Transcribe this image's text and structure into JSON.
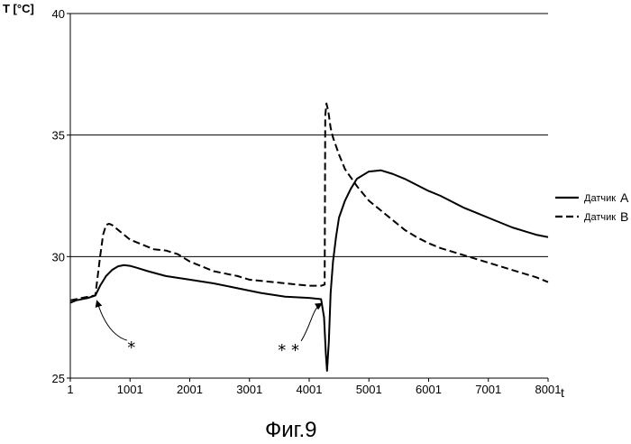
{
  "chart_data": {
    "type": "line",
    "title": "",
    "caption": "Фиг.9",
    "ylabel": "T [°C]",
    "xlabel": "t",
    "ylim": [
      25,
      40
    ],
    "xlim": [
      1,
      8001
    ],
    "y_ticks": [
      25,
      30,
      35,
      40
    ],
    "x_ticks": [
      1,
      1001,
      2001,
      3001,
      4001,
      5001,
      6001,
      7001,
      8001
    ],
    "x_tick_labels": [
      "1",
      "1001",
      "2001",
      "3001",
      "4001",
      "5001",
      "6001",
      "7001",
      "8001"
    ],
    "grid": "horizontal",
    "legend_position": "right",
    "series": [
      {
        "name": "Датчик",
        "letter": "A",
        "style": "solid",
        "x": [
          1,
          100,
          300,
          420,
          500,
          600,
          700,
          800,
          900,
          1000,
          1100,
          1300,
          1600,
          2000,
          2400,
          2800,
          3200,
          3600,
          4000,
          4200,
          4250,
          4280,
          4300,
          4330,
          4360,
          4400,
          4450,
          4500,
          4600,
          4700,
          4800,
          5000,
          5200,
          5400,
          5600,
          5800,
          6000,
          6200,
          6400,
          6600,
          6800,
          7000,
          7200,
          7400,
          7600,
          7800,
          8001
        ],
        "values": [
          28.1,
          28.2,
          28.3,
          28.4,
          28.8,
          29.2,
          29.45,
          29.6,
          29.65,
          29.62,
          29.55,
          29.4,
          29.2,
          29.05,
          28.9,
          28.7,
          28.5,
          28.35,
          28.3,
          28.25,
          27.5,
          26.0,
          25.3,
          26.5,
          28.5,
          29.8,
          30.8,
          31.6,
          32.3,
          32.8,
          33.2,
          33.5,
          33.55,
          33.4,
          33.2,
          32.95,
          32.7,
          32.5,
          32.25,
          32.0,
          31.8,
          31.6,
          31.4,
          31.2,
          31.05,
          30.9,
          30.8
        ]
      },
      {
        "name": "Датчик",
        "letter": "B",
        "style": "dashed",
        "x": [
          1,
          100,
          300,
          420,
          450,
          500,
          550,
          600,
          650,
          700,
          800,
          900,
          1000,
          1200,
          1400,
          1600,
          1800,
          2000,
          2200,
          2400,
          2600,
          2800,
          3000,
          3200,
          3400,
          3600,
          3800,
          4000,
          4200,
          4260,
          4270,
          4290,
          4320,
          4360,
          4400,
          4500,
          4600,
          4800,
          5000,
          5200,
          5400,
          5600,
          5800,
          6000,
          6200,
          6400,
          6600,
          6800,
          7000,
          7200,
          7400,
          7600,
          7800,
          8001
        ],
        "values": [
          28.2,
          28.25,
          28.35,
          28.4,
          29.0,
          30.0,
          30.9,
          31.3,
          31.35,
          31.3,
          31.1,
          30.9,
          30.7,
          30.5,
          30.3,
          30.25,
          30.1,
          29.8,
          29.6,
          29.4,
          29.3,
          29.2,
          29.05,
          29.0,
          28.95,
          28.9,
          28.85,
          28.8,
          28.8,
          28.85,
          35.8,
          36.3,
          36.0,
          35.3,
          34.9,
          34.2,
          33.6,
          32.9,
          32.3,
          31.9,
          31.5,
          31.1,
          30.8,
          30.55,
          30.35,
          30.2,
          30.05,
          29.9,
          29.75,
          29.6,
          29.45,
          29.3,
          29.15,
          28.95
        ]
      }
    ],
    "annotations": [
      {
        "text": "*",
        "target_x": 420,
        "target_y": 28.3
      },
      {
        "text": "* *",
        "target_x": 4230,
        "target_y": 28.2
      }
    ]
  }
}
